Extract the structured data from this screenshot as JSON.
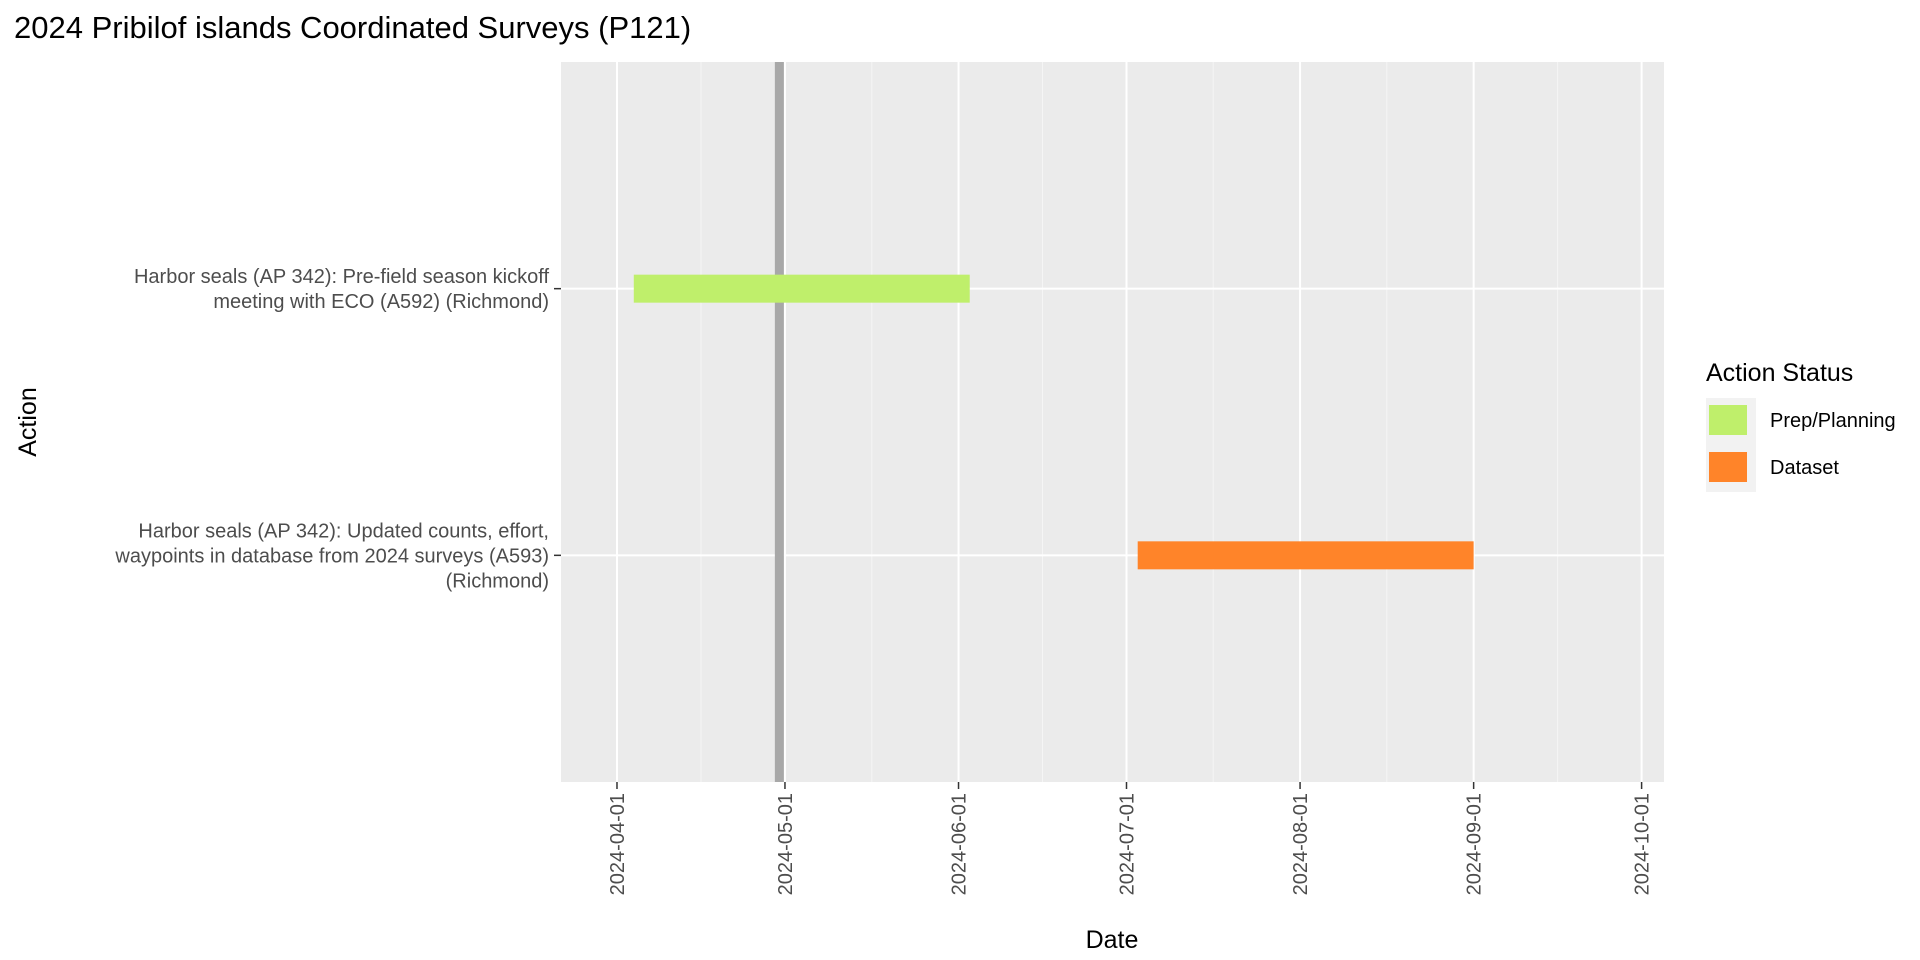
{
  "chart_data": {
    "type": "gantt",
    "title": "2024 Pribilof islands Coordinated Surveys (P121)",
    "xlabel": "Date",
    "ylabel": "Action",
    "x_range": [
      "2024-03-22",
      "2024-10-05"
    ],
    "x_ticks": [
      "2024-04-01",
      "2024-05-01",
      "2024-06-01",
      "2024-07-01",
      "2024-08-01",
      "2024-09-01",
      "2024-10-01"
    ],
    "reference_line": "2024-04-30",
    "grid": true,
    "legend": {
      "title": "Action Status",
      "position": "right",
      "items": [
        {
          "label": "Prep/Planning",
          "color": "#bfef6b"
        },
        {
          "label": "Dataset",
          "color": "#ff8429"
        }
      ]
    },
    "tasks": [
      {
        "label_lines": [
          "Harbor seals (AP 342): Pre-field season kickoff",
          "meeting with ECO (A592) (Richmond)"
        ],
        "start": "2024-04-04",
        "end": "2024-06-03",
        "status": "Prep/Planning"
      },
      {
        "label_lines": [
          "Harbor seals (AP 342): Updated counts, effort,",
          "waypoints in database from 2024 surveys (A593)",
          "(Richmond)"
        ],
        "start": "2024-07-03",
        "end": "2024-09-01",
        "status": "Dataset"
      }
    ]
  }
}
